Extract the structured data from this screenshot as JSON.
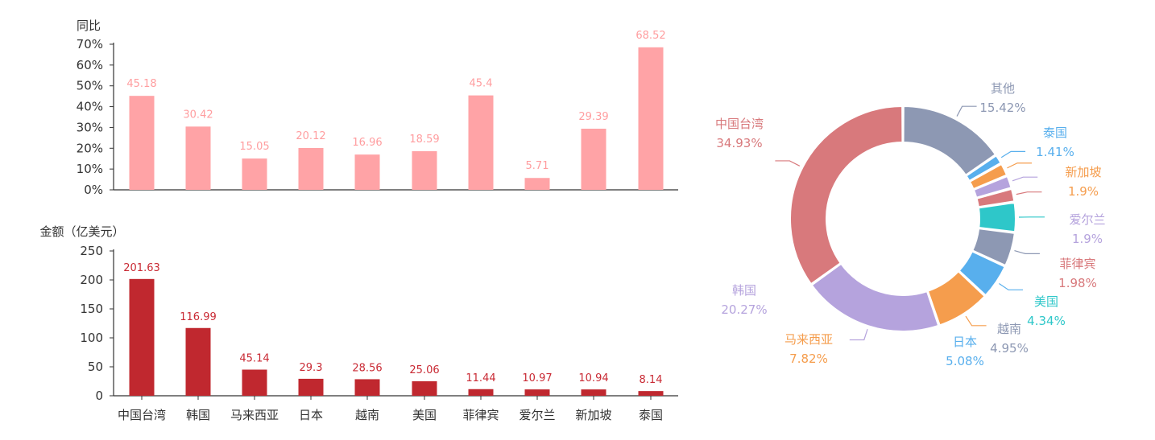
{
  "chart_data": [
    {
      "type": "bar",
      "ylabel": "同比",
      "categories": [
        "中国台湾",
        "韩国",
        "马来西亚",
        "日本",
        "越南",
        "美国",
        "菲律宾",
        "爱尔兰",
        "新加坡",
        "泰国"
      ],
      "values": [
        45.18,
        30.42,
        15.05,
        20.12,
        16.96,
        18.59,
        45.4,
        5.71,
        29.39,
        68.52
      ],
      "ylim": [
        0,
        70
      ],
      "yticks": [
        "0%",
        "10%",
        "20%",
        "30%",
        "40%",
        "50%",
        "60%",
        "70%"
      ],
      "color": "#ffa3a6",
      "label_color": "#ff9d9f"
    },
    {
      "type": "bar",
      "ylabel": "金额（亿美元）",
      "categories": [
        "中国台湾",
        "韩国",
        "马来西亚",
        "日本",
        "越南",
        "美国",
        "菲律宾",
        "爱尔兰",
        "新加坡",
        "泰国"
      ],
      "values": [
        201.63,
        116.99,
        45.14,
        29.3,
        28.56,
        25.06,
        11.44,
        10.97,
        10.94,
        8.14
      ],
      "ylim": [
        0,
        250
      ],
      "yticks": [
        "0",
        "50",
        "100",
        "150",
        "200",
        "250"
      ],
      "color": "#c0282f",
      "label_color": "#c92a34"
    },
    {
      "type": "pie",
      "style": "donut",
      "slices": [
        {
          "label": "其他",
          "pct_label": "15.42%",
          "value": 15.42,
          "color": "#8d98b3"
        },
        {
          "label": "泰国",
          "pct_label": "1.41%",
          "value": 1.41,
          "color": "#58afed"
        },
        {
          "label": "新加坡",
          "pct_label": "1.9%",
          "value": 1.9,
          "color": "#f59d4d"
        },
        {
          "label": "爱尔兰",
          "pct_label": "1.9%",
          "value": 1.9,
          "color": "#b5a3dd"
        },
        {
          "label": "菲律宾",
          "pct_label": "1.98%",
          "value": 1.98,
          "color": "#d8797c"
        },
        {
          "label": "美国",
          "pct_label": "4.34%",
          "value": 4.34,
          "color": "#2ec7c9"
        },
        {
          "label": "越南",
          "pct_label": "4.95%",
          "value": 4.95,
          "color": "#8d98b3"
        },
        {
          "label": "日本",
          "pct_label": "5.08%",
          "value": 5.08,
          "color": "#58afed"
        },
        {
          "label": "马来西亚",
          "pct_label": "7.82%",
          "value": 7.82,
          "color": "#f59d4d"
        },
        {
          "label": "韩国",
          "pct_label": "20.27%",
          "value": 20.27,
          "color": "#b5a3dd"
        },
        {
          "label": "中国台湾",
          "pct_label": "34.93%",
          "value": 34.93,
          "color": "#d8797c"
        }
      ]
    }
  ]
}
